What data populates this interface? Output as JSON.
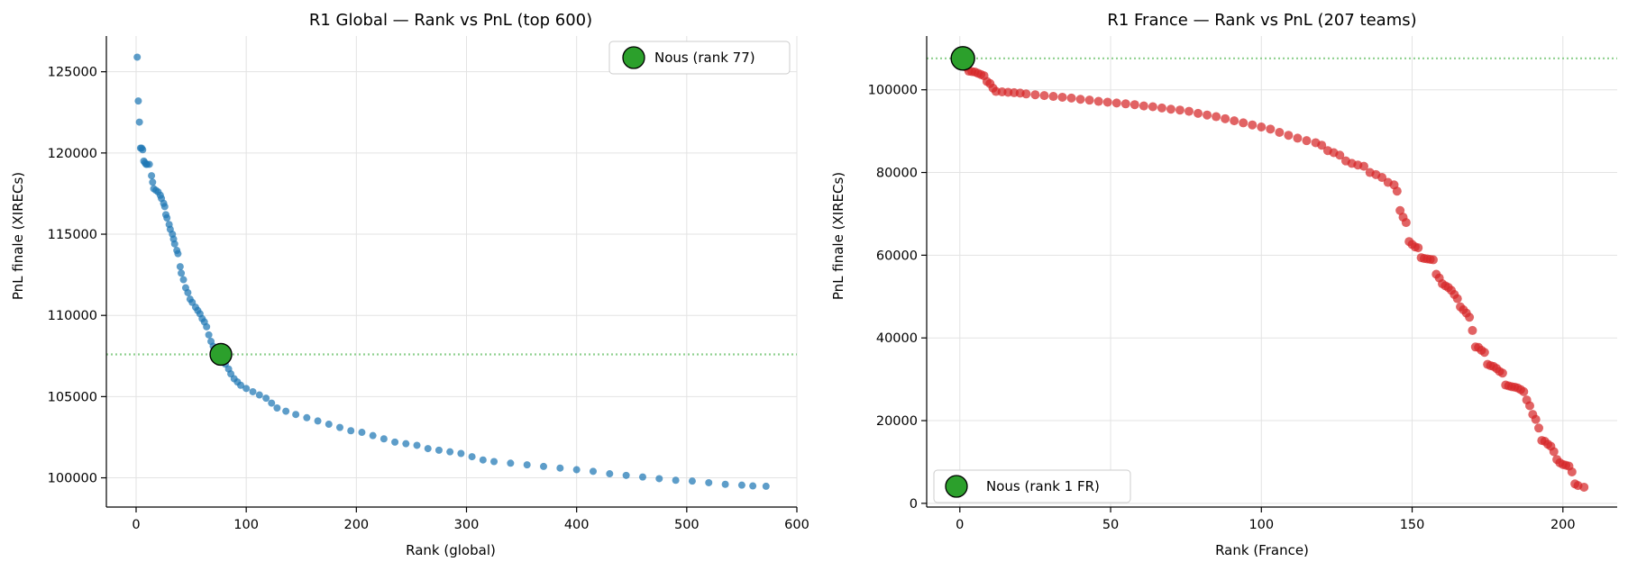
{
  "chart_data": [
    {
      "type": "scatter",
      "title": "R1 Global — Rank vs PnL (top 600)",
      "xlabel": "Rank (global)",
      "ylabel": "PnL finale (XIRECs)",
      "xlim": [
        -27,
        600
      ],
      "ylim": [
        98200,
        127200
      ],
      "xticks": [
        0,
        100,
        200,
        300,
        400,
        500,
        600
      ],
      "yticks": [
        100000,
        105000,
        110000,
        115000,
        120000,
        125000
      ],
      "grid": true,
      "legend_position": "top-right",
      "series_color": "#1f77b4",
      "points": [
        [
          1,
          125900
        ],
        [
          2,
          123200
        ],
        [
          3,
          121900
        ],
        [
          4,
          120300
        ],
        [
          5,
          120300
        ],
        [
          6,
          120200
        ],
        [
          7,
          119500
        ],
        [
          8,
          119400
        ],
        [
          9,
          119300
        ],
        [
          10,
          119300
        ],
        [
          12,
          119300
        ],
        [
          14,
          118600
        ],
        [
          15,
          118200
        ],
        [
          16,
          117800
        ],
        [
          18,
          117700
        ],
        [
          20,
          117600
        ],
        [
          22,
          117400
        ],
        [
          23,
          117200
        ],
        [
          25,
          116900
        ],
        [
          26,
          116700
        ],
        [
          27,
          116200
        ],
        [
          28,
          116000
        ],
        [
          30,
          115600
        ],
        [
          31,
          115300
        ],
        [
          33,
          115000
        ],
        [
          34,
          114700
        ],
        [
          35,
          114400
        ],
        [
          37,
          114000
        ],
        [
          38,
          113800
        ],
        [
          40,
          113000
        ],
        [
          41,
          112600
        ],
        [
          43,
          112200
        ],
        [
          45,
          111700
        ],
        [
          47,
          111400
        ],
        [
          49,
          111000
        ],
        [
          51,
          110800
        ],
        [
          54,
          110500
        ],
        [
          56,
          110300
        ],
        [
          58,
          110100
        ],
        [
          60,
          109800
        ],
        [
          62,
          109600
        ],
        [
          64,
          109300
        ],
        [
          66,
          108800
        ],
        [
          68,
          108400
        ],
        [
          70,
          108100
        ],
        [
          72,
          107900
        ],
        [
          74,
          107700
        ],
        [
          79,
          107300
        ],
        [
          81,
          107000
        ],
        [
          84,
          106700
        ],
        [
          86,
          106400
        ],
        [
          89,
          106100
        ],
        [
          92,
          105900
        ],
        [
          95,
          105700
        ],
        [
          100,
          105500
        ],
        [
          106,
          105300
        ],
        [
          112,
          105100
        ],
        [
          118,
          104900
        ],
        [
          123,
          104600
        ],
        [
          128,
          104300
        ],
        [
          136,
          104100
        ],
        [
          145,
          103900
        ],
        [
          155,
          103700
        ],
        [
          165,
          103500
        ],
        [
          175,
          103300
        ],
        [
          185,
          103100
        ],
        [
          195,
          102900
        ],
        [
          205,
          102800
        ],
        [
          215,
          102600
        ],
        [
          225,
          102400
        ],
        [
          235,
          102200
        ],
        [
          245,
          102100
        ],
        [
          255,
          102000
        ],
        [
          265,
          101800
        ],
        [
          275,
          101700
        ],
        [
          285,
          101600
        ],
        [
          295,
          101500
        ],
        [
          305,
          101300
        ],
        [
          315,
          101100
        ],
        [
          325,
          101000
        ],
        [
          340,
          100900
        ],
        [
          355,
          100800
        ],
        [
          370,
          100700
        ],
        [
          385,
          100600
        ],
        [
          400,
          100500
        ],
        [
          415,
          100400
        ],
        [
          430,
          100250
        ],
        [
          445,
          100150
        ],
        [
          460,
          100050
        ],
        [
          475,
          99950
        ],
        [
          490,
          99850
        ],
        [
          505,
          99800
        ],
        [
          520,
          99700
        ],
        [
          535,
          99600
        ],
        [
          550,
          99550
        ],
        [
          560,
          99500
        ],
        [
          572,
          99480
        ]
      ],
      "highlight": {
        "x": 77,
        "y": 107600,
        "color": "#2ca02c",
        "legend": "Nous (rank 77)"
      },
      "reference_line": {
        "y": 107600,
        "color": "#8fd08f",
        "style": "dotted"
      }
    },
    {
      "type": "scatter",
      "title": "R1 France — Rank vs PnL (207 teams)",
      "xlabel": "Rank (France)",
      "ylabel": "PnL finale (XIRECs)",
      "xlim": [
        -11,
        218
      ],
      "ylim": [
        -900,
        113000
      ],
      "xticks": [
        0,
        50,
        100,
        150,
        200
      ],
      "yticks": [
        0,
        20000,
        40000,
        60000,
        80000,
        100000
      ],
      "grid": true,
      "legend_position": "bottom-left",
      "series_color": "#d62728",
      "points": [
        [
          2,
          105500
        ],
        [
          3,
          104500
        ],
        [
          4,
          104400
        ],
        [
          5,
          104300
        ],
        [
          6,
          104000
        ],
        [
          7,
          103700
        ],
        [
          8,
          103400
        ],
        [
          9,
          102000
        ],
        [
          10,
          101500
        ],
        [
          11,
          100400
        ],
        [
          12,
          99600
        ],
        [
          14,
          99500
        ],
        [
          16,
          99400
        ],
        [
          18,
          99300
        ],
        [
          20,
          99200
        ],
        [
          22,
          99000
        ],
        [
          25,
          98800
        ],
        [
          28,
          98600
        ],
        [
          31,
          98400
        ],
        [
          34,
          98200
        ],
        [
          37,
          98000
        ],
        [
          40,
          97700
        ],
        [
          43,
          97500
        ],
        [
          46,
          97200
        ],
        [
          49,
          97000
        ],
        [
          52,
          96800
        ],
        [
          55,
          96600
        ],
        [
          58,
          96400
        ],
        [
          61,
          96100
        ],
        [
          64,
          95900
        ],
        [
          67,
          95600
        ],
        [
          70,
          95300
        ],
        [
          73,
          95100
        ],
        [
          76,
          94800
        ],
        [
          79,
          94300
        ],
        [
          82,
          93900
        ],
        [
          85,
          93500
        ],
        [
          88,
          93000
        ],
        [
          91,
          92500
        ],
        [
          94,
          92000
        ],
        [
          97,
          91500
        ],
        [
          100,
          91000
        ],
        [
          103,
          90500
        ],
        [
          106,
          89700
        ],
        [
          109,
          89000
        ],
        [
          112,
          88300
        ],
        [
          115,
          87700
        ],
        [
          118,
          87200
        ],
        [
          120,
          86600
        ],
        [
          122,
          85300
        ],
        [
          124,
          84800
        ],
        [
          126,
          84200
        ],
        [
          128,
          82800
        ],
        [
          130,
          82200
        ],
        [
          132,
          81800
        ],
        [
          134,
          81500
        ],
        [
          136,
          80000
        ],
        [
          138,
          79500
        ],
        [
          140,
          78800
        ],
        [
          142,
          77600
        ],
        [
          144,
          77000
        ],
        [
          145,
          75500
        ],
        [
          146,
          70800
        ],
        [
          147,
          69200
        ],
        [
          148,
          67900
        ],
        [
          149,
          63300
        ],
        [
          150,
          62600
        ],
        [
          151,
          62000
        ],
        [
          152,
          61800
        ],
        [
          153,
          59400
        ],
        [
          154,
          59200
        ],
        [
          155,
          59100
        ],
        [
          156,
          59000
        ],
        [
          157,
          58900
        ],
        [
          158,
          55400
        ],
        [
          159,
          54500
        ],
        [
          160,
          53100
        ],
        [
          161,
          52600
        ],
        [
          162,
          52200
        ],
        [
          163,
          51500
        ],
        [
          164,
          50500
        ],
        [
          165,
          49500
        ],
        [
          166,
          47500
        ],
        [
          167,
          46800
        ],
        [
          168,
          46000
        ],
        [
          169,
          45000
        ],
        [
          170,
          41800
        ],
        [
          171,
          37800
        ],
        [
          172,
          37700
        ],
        [
          173,
          37000
        ],
        [
          174,
          36500
        ],
        [
          175,
          33600
        ],
        [
          176,
          33300
        ],
        [
          177,
          33100
        ],
        [
          178,
          32600
        ],
        [
          179,
          31900
        ],
        [
          180,
          31500
        ],
        [
          181,
          28600
        ],
        [
          182,
          28400
        ],
        [
          183,
          28200
        ],
        [
          184,
          28100
        ],
        [
          185,
          27900
        ],
        [
          186,
          27500
        ],
        [
          187,
          27000
        ],
        [
          188,
          25000
        ],
        [
          189,
          23600
        ],
        [
          190,
          21500
        ],
        [
          191,
          20300
        ],
        [
          192,
          18200
        ],
        [
          193,
          15200
        ],
        [
          194,
          15000
        ],
        [
          195,
          14300
        ],
        [
          196,
          13800
        ],
        [
          197,
          12500
        ],
        [
          198,
          10600
        ],
        [
          199,
          9800
        ],
        [
          200,
          9400
        ],
        [
          201,
          9200
        ],
        [
          202,
          9000
        ],
        [
          203,
          7600
        ],
        [
          204,
          4700
        ],
        [
          205,
          4300
        ],
        [
          207,
          3900
        ]
      ],
      "highlight": {
        "x": 1,
        "y": 107600,
        "color": "#2ca02c",
        "legend": "Nous (rank 1 FR)"
      },
      "reference_line": {
        "y": 107600,
        "color": "#8fd08f",
        "style": "dotted"
      }
    }
  ]
}
